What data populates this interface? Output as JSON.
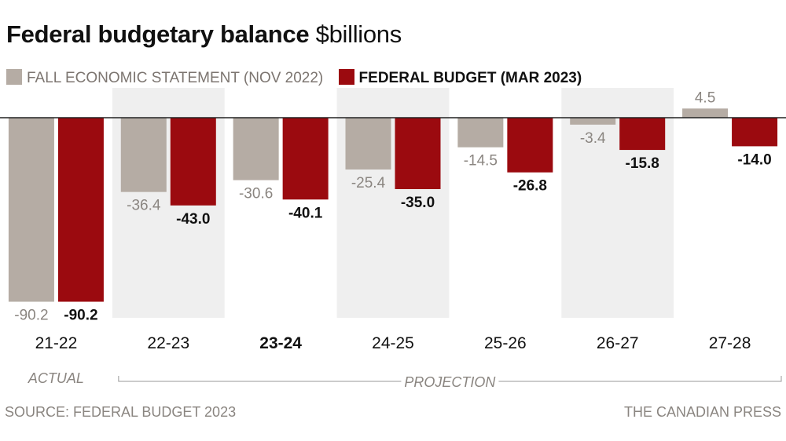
{
  "title": "Federal budgetary balance",
  "title_unit": "$billions",
  "legend": [
    {
      "label": "FALL ECONOMIC STATEMENT (NOV 2022)",
      "color": "#b5aca4"
    },
    {
      "label": "FEDERAL BUDGET (MAR 2023)",
      "color": "#9b0a0f"
    }
  ],
  "chart_data": {
    "type": "bar",
    "categories": [
      "21-22",
      "22-23",
      "23-24",
      "24-25",
      "25-26",
      "26-27",
      "27-28"
    ],
    "highlight_category": "23-24",
    "series": [
      {
        "name": "FALL ECONOMIC STATEMENT (NOV 2022)",
        "values": [
          -90.2,
          -36.4,
          -30.6,
          -25.4,
          -14.5,
          -3.4,
          4.5
        ],
        "color": "#b5aca4",
        "label_color": "#8a8580"
      },
      {
        "name": "FEDERAL BUDGET (MAR 2023)",
        "values": [
          -90.2,
          -43.0,
          -40.1,
          -35.0,
          -26.8,
          -15.8,
          -14.0
        ],
        "color": "#9b0a0f",
        "label_color": "#111111"
      }
    ],
    "value_labels": [
      [
        "-90.2",
        "-36.4",
        "-30.6",
        "-25.4",
        "-14.5",
        "-3.4",
        "4.5"
      ],
      [
        "-90.2",
        "-43.0",
        "-40.1",
        "-35.0",
        "-26.8",
        "-15.8",
        "-14.0"
      ]
    ],
    "period_labels": {
      "actual": "ACTUAL",
      "projection": "PROJECTION"
    },
    "ylim": [
      -95,
      12
    ],
    "grid": false,
    "legend_position": "top-left",
    "alternate_column_shading": "#efefef"
  },
  "footer": {
    "source": "SOURCE: FEDERAL BUDGET 2023",
    "credit": "THE CANADIAN PRESS"
  }
}
